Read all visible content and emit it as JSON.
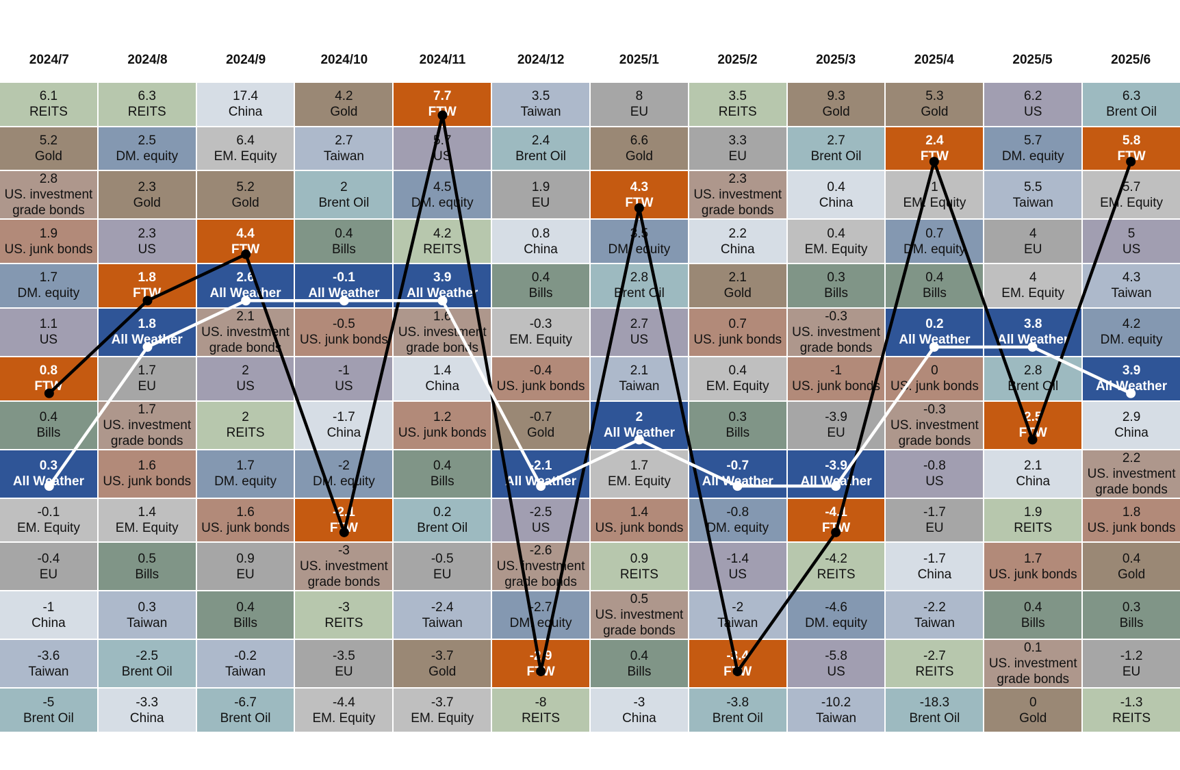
{
  "chart_data": {
    "type": "table",
    "description_labels": {
      "ftw": "FTW",
      "all_weather": "All Weather"
    },
    "asset_colors": {
      "REITS": "#b7c7ad",
      "Gold": "#9a8875",
      "US. investment grade bonds": "#ae978c",
      "US. junk bonds": "#b28a79",
      "DM. equity": "#8498b1",
      "US": "#a19eb1",
      "FTW": "#c55a11",
      "Bills": "#809587",
      "All Weather": "#2f5597",
      "EM. Equity": "#bfbfbf",
      "EU": "#a6a6a6",
      "China": "#d6dde5",
      "Taiwan": "#adb9cb",
      "Brent Oil": "#9dbac0"
    },
    "lines": [
      {
        "asset": "FTW",
        "color": "#000000"
      },
      {
        "asset": "All Weather",
        "color": "#ffffff"
      }
    ],
    "columns": [
      {
        "period": "2024/7",
        "cells": [
          [
            6.1,
            "REITS"
          ],
          [
            5.2,
            "Gold"
          ],
          [
            2.8,
            "US. investment grade bonds"
          ],
          [
            1.9,
            "US. junk bonds"
          ],
          [
            1.7,
            "DM. equity"
          ],
          [
            1.1,
            "US"
          ],
          [
            0.8,
            "FTW"
          ],
          [
            0.4,
            "Bills"
          ],
          [
            0.3,
            "All Weather"
          ],
          [
            -0.1,
            "EM. Equity"
          ],
          [
            -0.4,
            "EU"
          ],
          [
            -1,
            "China"
          ],
          [
            -3.6,
            "Taiwan"
          ],
          [
            -5,
            "Brent Oil"
          ]
        ]
      },
      {
        "period": "2024/8",
        "cells": [
          [
            6.3,
            "REITS"
          ],
          [
            2.5,
            "DM. equity"
          ],
          [
            2.3,
            "Gold"
          ],
          [
            2.3,
            "US"
          ],
          [
            1.8,
            "FTW"
          ],
          [
            1.8,
            "All Weather"
          ],
          [
            1.7,
            "EU"
          ],
          [
            1.7,
            "US. investment grade bonds"
          ],
          [
            1.6,
            "US. junk bonds"
          ],
          [
            1.4,
            "EM. Equity"
          ],
          [
            0.5,
            "Bills"
          ],
          [
            0.3,
            "Taiwan"
          ],
          [
            -2.5,
            "Brent Oil"
          ],
          [
            -3.3,
            "China"
          ]
        ]
      },
      {
        "period": "2024/9",
        "cells": [
          [
            17.4,
            "China"
          ],
          [
            6.4,
            "EM. Equity"
          ],
          [
            5.2,
            "Gold"
          ],
          [
            4.4,
            "FTW"
          ],
          [
            2.6,
            "All Weather"
          ],
          [
            2.1,
            "US. investment grade bonds"
          ],
          [
            2,
            "US"
          ],
          [
            2,
            "REITS"
          ],
          [
            1.7,
            "DM. equity"
          ],
          [
            1.6,
            "US. junk bonds"
          ],
          [
            0.9,
            "EU"
          ],
          [
            0.4,
            "Bills"
          ],
          [
            -0.2,
            "Taiwan"
          ],
          [
            -6.7,
            "Brent Oil"
          ]
        ]
      },
      {
        "period": "2024/10",
        "cells": [
          [
            4.2,
            "Gold"
          ],
          [
            2.7,
            "Taiwan"
          ],
          [
            2,
            "Brent Oil"
          ],
          [
            0.4,
            "Bills"
          ],
          [
            -0.1,
            "All Weather"
          ],
          [
            -0.5,
            "US. junk bonds"
          ],
          [
            -1,
            "US"
          ],
          [
            -1.7,
            "China"
          ],
          [
            -2,
            "DM. equity"
          ],
          [
            -2.1,
            "FTW"
          ],
          [
            -3,
            "US. investment grade bonds"
          ],
          [
            -3,
            "REITS"
          ],
          [
            -3.5,
            "EU"
          ],
          [
            -4.4,
            "EM. Equity"
          ]
        ]
      },
      {
        "period": "2024/11",
        "cells": [
          [
            7.7,
            "FTW"
          ],
          [
            5.7,
            "US"
          ],
          [
            4.5,
            "DM. equity"
          ],
          [
            4.2,
            "REITS"
          ],
          [
            3.9,
            "All Weather"
          ],
          [
            1.6,
            "US. investment grade bonds"
          ],
          [
            1.4,
            "China"
          ],
          [
            1.2,
            "US. junk bonds"
          ],
          [
            0.4,
            "Bills"
          ],
          [
            0.2,
            "Brent Oil"
          ],
          [
            -0.5,
            "EU"
          ],
          [
            -2.4,
            "Taiwan"
          ],
          [
            -3.7,
            "Gold"
          ],
          [
            -3.7,
            "EM. Equity"
          ]
        ]
      },
      {
        "period": "2024/12",
        "cells": [
          [
            3.5,
            "Taiwan"
          ],
          [
            2.4,
            "Brent Oil"
          ],
          [
            1.9,
            "EU"
          ],
          [
            0.8,
            "China"
          ],
          [
            0.4,
            "Bills"
          ],
          [
            -0.3,
            "EM. Equity"
          ],
          [
            -0.4,
            "US. junk bonds"
          ],
          [
            -0.7,
            "Gold"
          ],
          [
            -2.1,
            "All Weather"
          ],
          [
            -2.5,
            "US"
          ],
          [
            -2.6,
            "US. investment grade bonds"
          ],
          [
            -2.7,
            "DM. equity"
          ],
          [
            -2.9,
            "FTW"
          ],
          [
            -8,
            "REITS"
          ]
        ]
      },
      {
        "period": "2025/1",
        "cells": [
          [
            8,
            "EU"
          ],
          [
            6.6,
            "Gold"
          ],
          [
            4.3,
            "FTW"
          ],
          [
            3.5,
            "DM. equity"
          ],
          [
            2.8,
            "Brent Oil"
          ],
          [
            2.7,
            "US"
          ],
          [
            2.1,
            "Taiwan"
          ],
          [
            2,
            "All Weather"
          ],
          [
            1.7,
            "EM. Equity"
          ],
          [
            1.4,
            "US. junk bonds"
          ],
          [
            0.9,
            "REITS"
          ],
          [
            0.5,
            "US. investment grade bonds"
          ],
          [
            0.4,
            "Bills"
          ],
          [
            -3,
            "China"
          ]
        ]
      },
      {
        "period": "2025/2",
        "cells": [
          [
            3.5,
            "REITS"
          ],
          [
            3.3,
            "EU"
          ],
          [
            2.3,
            "US. investment grade bonds"
          ],
          [
            2.2,
            "China"
          ],
          [
            2.1,
            "Gold"
          ],
          [
            0.7,
            "US. junk bonds"
          ],
          [
            0.4,
            "EM. Equity"
          ],
          [
            0.3,
            "Bills"
          ],
          [
            -0.7,
            "All Weather"
          ],
          [
            -0.8,
            "DM. equity"
          ],
          [
            -1.4,
            "US"
          ],
          [
            -2,
            "Taiwan"
          ],
          [
            -3.4,
            "FTW"
          ],
          [
            -3.8,
            "Brent Oil"
          ]
        ]
      },
      {
        "period": "2025/3",
        "cells": [
          [
            9.3,
            "Gold"
          ],
          [
            2.7,
            "Brent Oil"
          ],
          [
            0.4,
            "China"
          ],
          [
            0.4,
            "EM. Equity"
          ],
          [
            0.3,
            "Bills"
          ],
          [
            -0.3,
            "US. investment grade bonds"
          ],
          [
            -1,
            "US. junk bonds"
          ],
          [
            -3.9,
            "EU"
          ],
          [
            -3.9,
            "All Weather"
          ],
          [
            -4.1,
            "FTW"
          ],
          [
            -4.2,
            "REITS"
          ],
          [
            -4.6,
            "DM. equity"
          ],
          [
            -5.8,
            "US"
          ],
          [
            -10.2,
            "Taiwan"
          ]
        ]
      },
      {
        "period": "2025/4",
        "cells": [
          [
            5.3,
            "Gold"
          ],
          [
            2.4,
            "FTW"
          ],
          [
            1,
            "EM. Equity"
          ],
          [
            0.7,
            "DM. equity"
          ],
          [
            0.4,
            "Bills"
          ],
          [
            0.2,
            "All Weather"
          ],
          [
            0,
            "US. junk bonds"
          ],
          [
            -0.3,
            "US. investment grade bonds"
          ],
          [
            -0.8,
            "US"
          ],
          [
            -1.7,
            "EU"
          ],
          [
            -1.7,
            "China"
          ],
          [
            -2.2,
            "Taiwan"
          ],
          [
            -2.7,
            "REITS"
          ],
          [
            -18.3,
            "Brent Oil"
          ]
        ]
      },
      {
        "period": "2025/5",
        "cells": [
          [
            6.2,
            "US"
          ],
          [
            5.7,
            "DM. equity"
          ],
          [
            5.5,
            "Taiwan"
          ],
          [
            4,
            "EU"
          ],
          [
            4,
            "EM. Equity"
          ],
          [
            3.8,
            "All Weather"
          ],
          [
            2.8,
            "Brent Oil"
          ],
          [
            2.5,
            "FTW"
          ],
          [
            2.1,
            "China"
          ],
          [
            1.9,
            "REITS"
          ],
          [
            1.7,
            "US. junk bonds"
          ],
          [
            0.4,
            "Bills"
          ],
          [
            0.1,
            "US. investment grade bonds"
          ],
          [
            0,
            "Gold"
          ]
        ]
      },
      {
        "period": "2025/6",
        "cells": [
          [
            6.3,
            "Brent Oil"
          ],
          [
            5.8,
            "FTW"
          ],
          [
            5.7,
            "EM. Equity"
          ],
          [
            5,
            "US"
          ],
          [
            4.3,
            "Taiwan"
          ],
          [
            4.2,
            "DM. equity"
          ],
          [
            3.9,
            "All Weather"
          ],
          [
            2.9,
            "China"
          ],
          [
            2.2,
            "US. investment grade bonds"
          ],
          [
            1.8,
            "US. junk bonds"
          ],
          [
            0.4,
            "Gold"
          ],
          [
            0.3,
            "Bills"
          ],
          [
            -1.2,
            "EU"
          ],
          [
            -1.3,
            "REITS"
          ]
        ]
      }
    ]
  }
}
